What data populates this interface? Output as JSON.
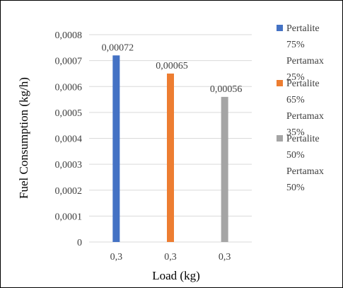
{
  "chart_data": {
    "type": "bar",
    "x_label": "Load (kg)",
    "y_label": "Fuel Consumption (kg/h)",
    "categories": [
      "0,3",
      "0,3",
      "0,3"
    ],
    "series": [
      {
        "name": "Pertalite 75% Pertamax 25%",
        "color": "#4472c4",
        "values": [
          0.00072,
          null,
          null
        ],
        "value_labels": [
          "0,00072",
          null,
          null
        ]
      },
      {
        "name": "Pertalite 65% Pertamax 35%",
        "color": "#ed7d31",
        "values": [
          null,
          0.00065,
          null
        ],
        "value_labels": [
          null,
          "0,00065",
          null
        ]
      },
      {
        "name": "Pertalite 50% Pertamax 50%",
        "color": "#a5a5a5",
        "values": [
          null,
          null,
          0.00056
        ],
        "value_labels": [
          null,
          null,
          "0,00056"
        ]
      }
    ],
    "ylim": [
      0,
      0.0008
    ],
    "yticks": [
      0,
      {
        "value": 0.0001,
        "label": "0,0001"
      },
      {
        "value": 0.0002,
        "label": "0,0002"
      },
      {
        "value": 0.0003,
        "label": "0,0003"
      },
      {
        "value": 0.0004,
        "label": "0,0004"
      },
      {
        "value": 0.0005,
        "label": "0,0005"
      },
      {
        "value": 0.0006,
        "label": "0,0006"
      },
      {
        "value": 0.0007,
        "label": "0,0007"
      },
      {
        "value": 0.0008,
        "label": "0,0008"
      }
    ],
    "grid": true,
    "legend": "right"
  }
}
